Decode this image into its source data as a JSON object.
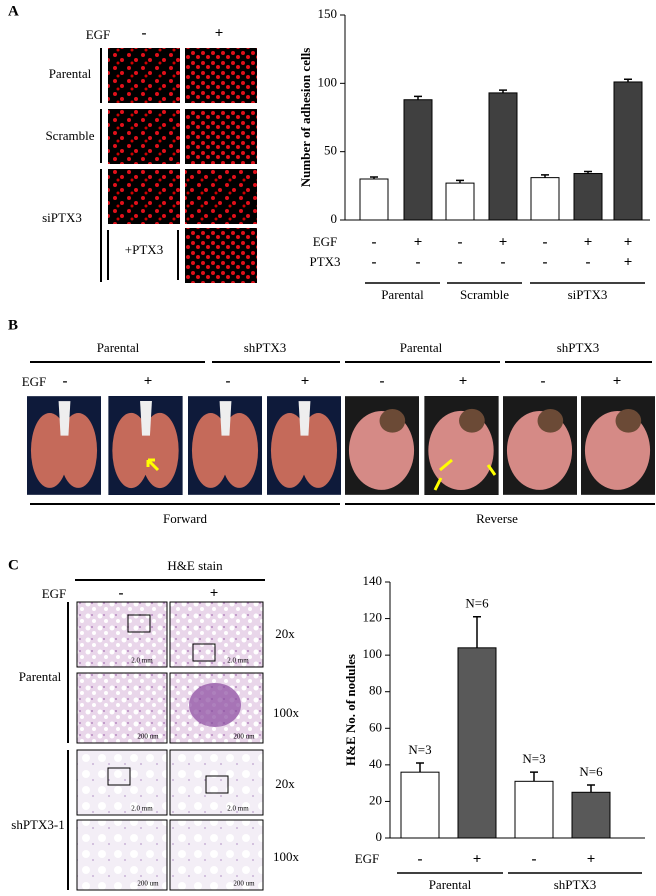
{
  "panel_a": {
    "label": "A",
    "egf": "EGF",
    "egf_signs": [
      "-",
      "+"
    ],
    "rows": [
      "Parental",
      "Scramble",
      "siPTX3"
    ],
    "ptx3": "+PTX3"
  },
  "panel_b": {
    "label": "B",
    "groups": [
      "Parental",
      "shPTX3",
      "Parental",
      "shPTX3"
    ],
    "egf": "EGF",
    "egf_signs": [
      "-",
      "+",
      "-",
      "+",
      "-",
      "+",
      "-",
      "+"
    ],
    "views": [
      "Forward",
      "Reverse"
    ]
  },
  "panel_c": {
    "label": "C",
    "stain": "H&E stain",
    "egf": "EGF",
    "egf_signs": [
      "-",
      "+"
    ],
    "rows": [
      "Parental",
      "shPTX3-1"
    ],
    "magnifications": [
      "20x",
      "100x",
      "20x",
      "100x"
    ],
    "scale_bars": [
      "2.0 mm",
      "2.0 mm",
      "200 um",
      "200 um",
      "2.0 mm",
      "2.0 mm",
      "200 um",
      "200 um"
    ]
  },
  "chart_data": [
    {
      "type": "bar",
      "ylabel": "Number of adhesion cells",
      "ylim": [
        0,
        150
      ],
      "yticks": [
        0,
        50,
        100,
        150
      ],
      "values": [
        30,
        88,
        27,
        93,
        31,
        34,
        101
      ],
      "errors": [
        1.5,
        2.5,
        2,
        2,
        2,
        1.5,
        2
      ],
      "colors": [
        "#ffffff",
        "#404040",
        "#ffffff",
        "#404040",
        "#ffffff",
        "#404040",
        "#404040"
      ],
      "row_labels": [
        "EGF",
        "PTX3"
      ],
      "signs": [
        [
          "-",
          "+",
          "-",
          "+",
          "-",
          "+",
          "+"
        ],
        [
          "-",
          "-",
          "-",
          "-",
          "-",
          "-",
          "+"
        ]
      ],
      "groups": [
        "Parental",
        "Scramble",
        "siPTX3"
      ]
    },
    {
      "type": "bar",
      "ylabel": "H&E No. of nodules",
      "ylim": [
        0,
        140
      ],
      "yticks": [
        0,
        20,
        40,
        60,
        80,
        100,
        120,
        140
      ],
      "values": [
        36,
        104,
        31,
        25
      ],
      "errors": [
        5,
        17,
        5,
        4
      ],
      "annotations": [
        "N=3",
        "N=6",
        "N=3",
        "N=6"
      ],
      "colors": [
        "#ffffff",
        "#595959",
        "#ffffff",
        "#595959"
      ],
      "row_labels": [
        "EGF"
      ],
      "signs": [
        [
          "-",
          "+",
          "-",
          "+"
        ]
      ],
      "groups": [
        "Parental",
        "shPTX3"
      ]
    }
  ]
}
